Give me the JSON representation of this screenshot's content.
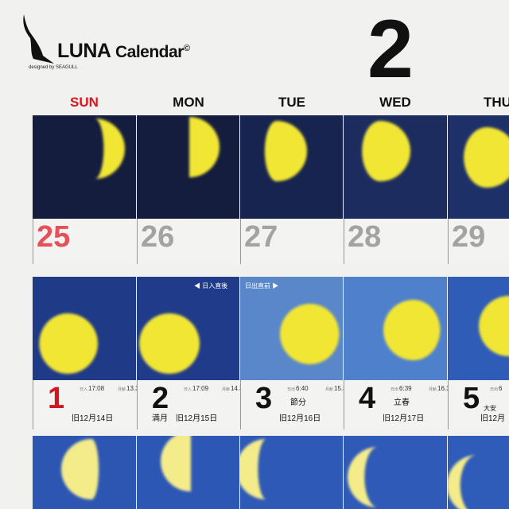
{
  "header": {
    "brand": "LUNA",
    "brand_suffix": "Calendar",
    "copyright": "©",
    "designed_by": "designed by SEAGULL",
    "month": "2"
  },
  "weekdays": [
    "SUN",
    "MON",
    "TUE",
    "WED",
    "THU"
  ],
  "colors": {
    "sunday": "#e0141e",
    "moon": "#f2e635"
  },
  "notes": {
    "after_sunset": "◀ 日入直後",
    "before_sunrise": "日出直前 ▶"
  },
  "week1": [
    {
      "day": "25",
      "bg": "#151d3f",
      "phase": 0.35,
      "side": "right"
    },
    {
      "day": "26",
      "bg": "#151d3f",
      "phase": 0.5,
      "side": "right"
    },
    {
      "day": "27",
      "bg": "#17244f",
      "phase": 0.7,
      "side": "right"
    },
    {
      "day": "28",
      "bg": "#1c2c5f",
      "phase": 0.8,
      "side": "right"
    },
    {
      "day": "29",
      "bg": "#1e3068",
      "phase": 0.88,
      "side": "right"
    }
  ],
  "week2": [
    {
      "day": "1",
      "bg": "#1f3a86",
      "phase": 0.97,
      "side": "right",
      "rise_label": "日入",
      "rise": "17:08",
      "age_label": "月齢",
      "age": "13.3",
      "old": "旧12月14日"
    },
    {
      "day": "2",
      "bg": "#1f3b8a",
      "phase": 1,
      "side": "right",
      "rise_label": "日入",
      "rise": "17:09",
      "age_label": "月齢",
      "age": "14.3",
      "event": "満月",
      "old": "旧12月15日"
    },
    {
      "day": "3",
      "bg": "#5a87c9",
      "phase": 0.98,
      "side": "left",
      "rise_label": "日出",
      "rise": "6:40",
      "age_label": "月齢",
      "age": "15.3",
      "sekki": "節分",
      "old": "旧12月16日"
    },
    {
      "day": "4",
      "bg": "#4f80cc",
      "phase": 0.94,
      "side": "left",
      "rise_label": "日出",
      "rise": "6:39",
      "age_label": "月齢",
      "age": "16.3",
      "sekki": "立春",
      "old": "旧12月17日"
    },
    {
      "day": "5",
      "bg": "#2e5cb6",
      "phase": 0.88,
      "side": "left",
      "rise_label": "日出",
      "rise": "6",
      "rokuyo": "大安",
      "old": "旧12月"
    }
  ],
  "week3": [
    {
      "bg": "#2d56b3",
      "phase": 0.62,
      "side": "left"
    },
    {
      "bg": "#2d57b5",
      "phase": 0.5,
      "side": "left"
    },
    {
      "bg": "#2e59b7",
      "phase": 0.36,
      "side": "left"
    },
    {
      "bg": "#2f5ab8",
      "phase": 0.28,
      "side": "left"
    },
    {
      "bg": "#2f5bb9",
      "phase": 0.22,
      "side": "left"
    }
  ]
}
